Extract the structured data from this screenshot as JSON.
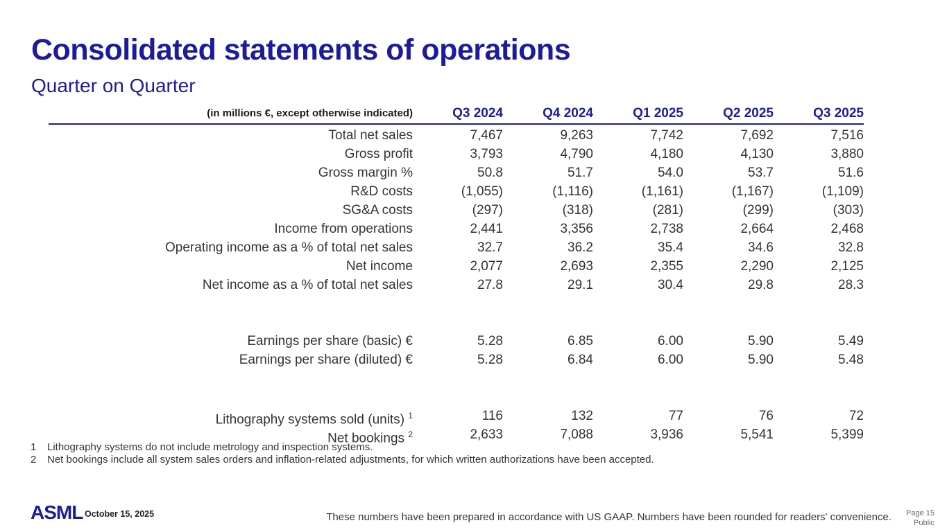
{
  "slide": {
    "title": "Consolidated statements of operations",
    "subtitle": "Quarter on Quarter"
  },
  "table": {
    "unit_note": "(in millions €, except otherwise indicated)",
    "columns": [
      "Q3 2024",
      "Q4 2024",
      "Q1 2025",
      "Q2 2025",
      "Q3 2025"
    ],
    "groups": [
      {
        "rows": [
          {
            "label": "Total net sales",
            "values": [
              "7,467",
              "9,263",
              "7,742",
              "7,692",
              "7,516"
            ]
          },
          {
            "label": "Gross profit",
            "values": [
              "3,793",
              "4,790",
              "4,180",
              "4,130",
              "3,880"
            ]
          },
          {
            "label": "Gross margin %",
            "values": [
              "50.8",
              "51.7",
              "54.0",
              "53.7",
              "51.6"
            ]
          },
          {
            "label": "R&D costs",
            "values": [
              "(1,055)",
              "(1,116)",
              "(1,161)",
              "(1,167)",
              "(1,109)"
            ]
          },
          {
            "label": "SG&A costs",
            "values": [
              "(297)",
              "(318)",
              "(281)",
              "(299)",
              "(303)"
            ]
          },
          {
            "label": "Income from operations",
            "values": [
              "2,441",
              "3,356",
              "2,738",
              "2,664",
              "2,468"
            ]
          },
          {
            "label": "Operating income as a % of total net sales",
            "values": [
              "32.7",
              "36.2",
              "35.4",
              "34.6",
              "32.8"
            ]
          },
          {
            "label": "Net income",
            "values": [
              "2,077",
              "2,693",
              "2,355",
              "2,290",
              "2,125"
            ]
          },
          {
            "label": "Net income as a % of total net sales",
            "values": [
              "27.8",
              "29.1",
              "30.4",
              "29.8",
              "28.3"
            ]
          }
        ]
      },
      {
        "rows": [
          {
            "label": "Earnings per share (basic) €",
            "values": [
              "5.28",
              "6.85",
              "6.00",
              "5.90",
              "5.49"
            ]
          },
          {
            "label": "Earnings per share (diluted) €",
            "values": [
              "5.28",
              "6.84",
              "6.00",
              "5.90",
              "5.48"
            ]
          }
        ]
      },
      {
        "rows": [
          {
            "label": "Lithography systems sold (units)",
            "sup": "1",
            "values": [
              "116",
              "132",
              "77",
              "76",
              "72"
            ]
          },
          {
            "label": "Net bookings",
            "sup": "2",
            "values": [
              "2,633",
              "7,088",
              "3,936",
              "5,541",
              "5,399"
            ]
          }
        ]
      }
    ]
  },
  "footnotes": [
    {
      "marker": "1",
      "text": "Lithography systems do not include metrology and inspection systems."
    },
    {
      "marker": "2",
      "text": "Net bookings include all system sales orders and inflation-related adjustments, for which written authorizations have been accepted."
    }
  ],
  "footer": {
    "logo": "ASML",
    "date": "October 15, 2025",
    "disclaimer": "These numbers have been prepared in accordance with US GAAP.  Numbers have been rounded for readers' convenience.",
    "page": "Page 15",
    "classification": "Public"
  },
  "colors": {
    "brand_navy": "#1c1b9e",
    "body_text": "#333333",
    "muted_gray": "#666666"
  }
}
